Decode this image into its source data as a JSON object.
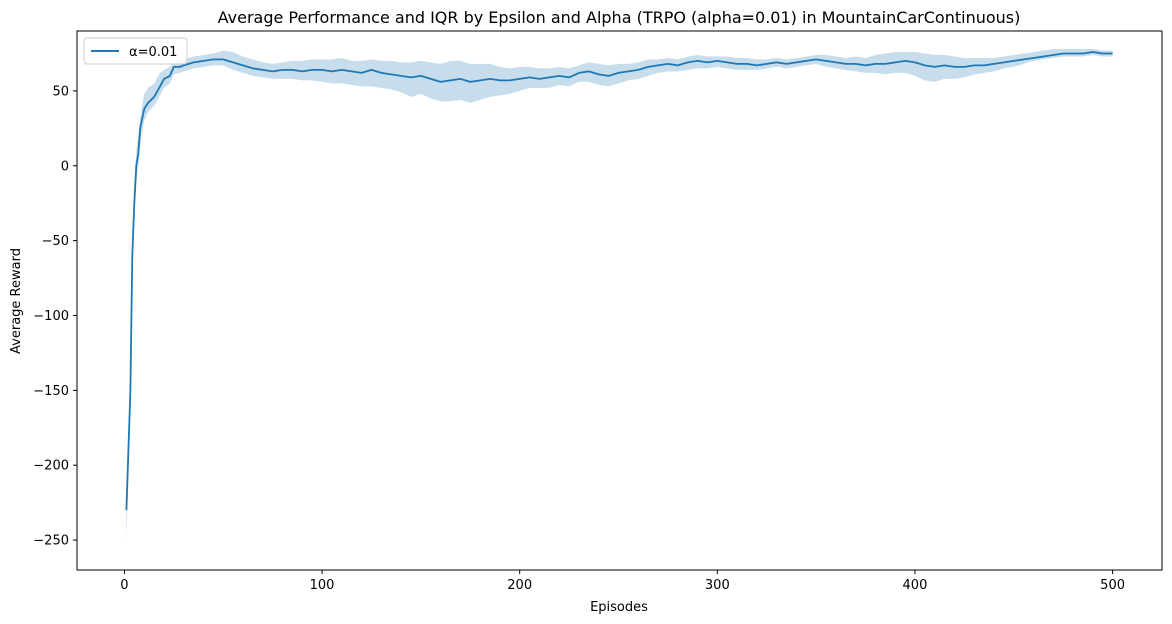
{
  "chart_data": {
    "type": "line",
    "title": "Average Performance and IQR by Epsilon and Alpha (TRPO (alpha=0.01) in MountainCarContinuous)",
    "xlabel": "Episodes",
    "ylabel": "Average Reward",
    "xlim": [
      -24,
      525
    ],
    "ylim": [
      -270,
      90
    ],
    "xticks": [
      0,
      100,
      200,
      300,
      400,
      500
    ],
    "yticks": [
      -250,
      -200,
      -150,
      -100,
      -50,
      0,
      50
    ],
    "xtick_labels": [
      "0",
      "100",
      "200",
      "300",
      "400",
      "500"
    ],
    "ytick_labels": [
      "−250",
      "−200",
      "−150",
      "−100",
      "−50",
      "0",
      "50"
    ],
    "grid": false,
    "legend_position": "top-left",
    "colors": {
      "line": "#1f77b4",
      "band": "#1f77b4",
      "band_opacity": 0.25
    },
    "series": [
      {
        "name": "α=0.01",
        "x": [
          1,
          3,
          4,
          5,
          6,
          7,
          8,
          10,
          12,
          15,
          18,
          20,
          23,
          25,
          28,
          30,
          35,
          40,
          45,
          50,
          55,
          60,
          65,
          70,
          75,
          80,
          85,
          90,
          95,
          100,
          105,
          110,
          115,
          120,
          125,
          130,
          135,
          140,
          145,
          150,
          155,
          160,
          165,
          170,
          175,
          180,
          185,
          190,
          195,
          200,
          205,
          210,
          215,
          220,
          225,
          230,
          235,
          240,
          245,
          250,
          255,
          260,
          265,
          270,
          275,
          280,
          285,
          290,
          295,
          300,
          305,
          310,
          315,
          320,
          325,
          330,
          335,
          340,
          345,
          350,
          355,
          360,
          365,
          370,
          375,
          380,
          385,
          390,
          395,
          400,
          405,
          410,
          415,
          420,
          425,
          430,
          435,
          440,
          445,
          450,
          455,
          460,
          465,
          470,
          475,
          480,
          485,
          490,
          495,
          500
        ],
        "y": [
          -230,
          -150,
          -60,
          -25,
          0,
          8,
          25,
          38,
          42,
          46,
          53,
          58,
          60,
          66,
          66,
          67,
          69,
          70,
          71,
          71,
          69,
          67,
          65,
          64,
          63,
          64,
          64,
          63,
          64,
          64,
          63,
          64,
          63,
          62,
          64,
          62,
          61,
          60,
          59,
          60,
          58,
          56,
          57,
          58,
          56,
          57,
          58,
          57,
          57,
          58,
          59,
          58,
          59,
          60,
          59,
          62,
          63,
          61,
          60,
          62,
          63,
          64,
          66,
          67,
          68,
          67,
          69,
          70,
          69,
          70,
          69,
          68,
          68,
          67,
          68,
          69,
          68,
          69,
          70,
          71,
          70,
          69,
          68,
          68,
          67,
          68,
          68,
          69,
          70,
          69,
          67,
          66,
          67,
          66,
          66,
          67,
          67,
          68,
          69,
          70,
          71,
          72,
          73,
          74,
          75,
          75,
          75,
          76,
          75,
          75
        ],
        "iqr_low": [
          -250,
          -165,
          -75,
          -35,
          -10,
          0,
          15,
          30,
          36,
          40,
          47,
          52,
          55,
          61,
          62,
          63,
          65,
          66,
          67,
          67,
          64,
          62,
          60,
          59,
          58,
          58,
          58,
          57,
          57,
          56,
          55,
          55,
          54,
          53,
          53,
          52,
          51,
          49,
          46,
          48,
          45,
          43,
          43,
          44,
          42,
          44,
          46,
          47,
          48,
          50,
          52,
          52,
          52,
          54,
          53,
          56,
          56,
          54,
          53,
          55,
          57,
          58,
          60,
          62,
          63,
          63,
          64,
          65,
          65,
          66,
          65,
          64,
          64,
          64,
          65,
          66,
          65,
          66,
          67,
          68,
          66,
          65,
          64,
          63,
          62,
          62,
          61,
          62,
          62,
          60,
          57,
          56,
          58,
          58,
          59,
          61,
          62,
          63,
          65,
          66,
          68,
          70,
          71,
          72,
          73,
          73,
          73,
          74,
          73,
          73
        ],
        "iqr_high": [
          -215,
          -140,
          -45,
          -12,
          10,
          20,
          32,
          48,
          52,
          55,
          62,
          64,
          66,
          69,
          70,
          71,
          73,
          74,
          75,
          77,
          76,
          73,
          71,
          69,
          68,
          69,
          70,
          70,
          71,
          71,
          71,
          72,
          70,
          70,
          71,
          70,
          70,
          69,
          69,
          70,
          69,
          68,
          70,
          70,
          68,
          68,
          68,
          66,
          65,
          66,
          66,
          65,
          65,
          66,
          65,
          67,
          69,
          68,
          67,
          68,
          68,
          69,
          71,
          71,
          72,
          71,
          73,
          74,
          73,
          73,
          73,
          72,
          72,
          71,
          71,
          72,
          71,
          72,
          73,
          74,
          74,
          73,
          72,
          73,
          72,
          74,
          75,
          76,
          76,
          76,
          75,
          74,
          74,
          73,
          72,
          72,
          72,
          72,
          73,
          74,
          75,
          76,
          77,
          78,
          78,
          78,
          78,
          78,
          77,
          77
        ]
      }
    ]
  }
}
